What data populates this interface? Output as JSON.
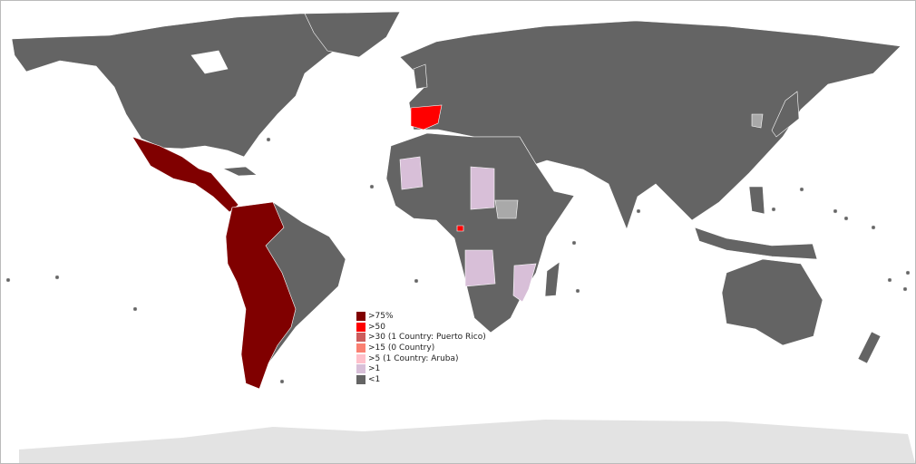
{
  "legend": {
    "items": [
      {
        "label": ">75%",
        "color": "#800000"
      },
      {
        "label": ">50",
        "color": "#ff0000"
      },
      {
        "label": ">30 (1 Country: Puerto Rico)",
        "color": "#cd5c5c"
      },
      {
        "label": ">15 (0 Country)",
        "color": "#fa8072"
      },
      {
        "label": ">5 (1 Country: Aruba)",
        "color": "#ffc0cb"
      },
      {
        "label": ">1",
        "color": "#d8bfd8"
      },
      {
        "label": "<1",
        "color": "#646464"
      }
    ]
  },
  "colors": {
    "no_data": "#a9a9a9",
    "antarctica": "#e3e3e3",
    "land_default": "#646464"
  }
}
